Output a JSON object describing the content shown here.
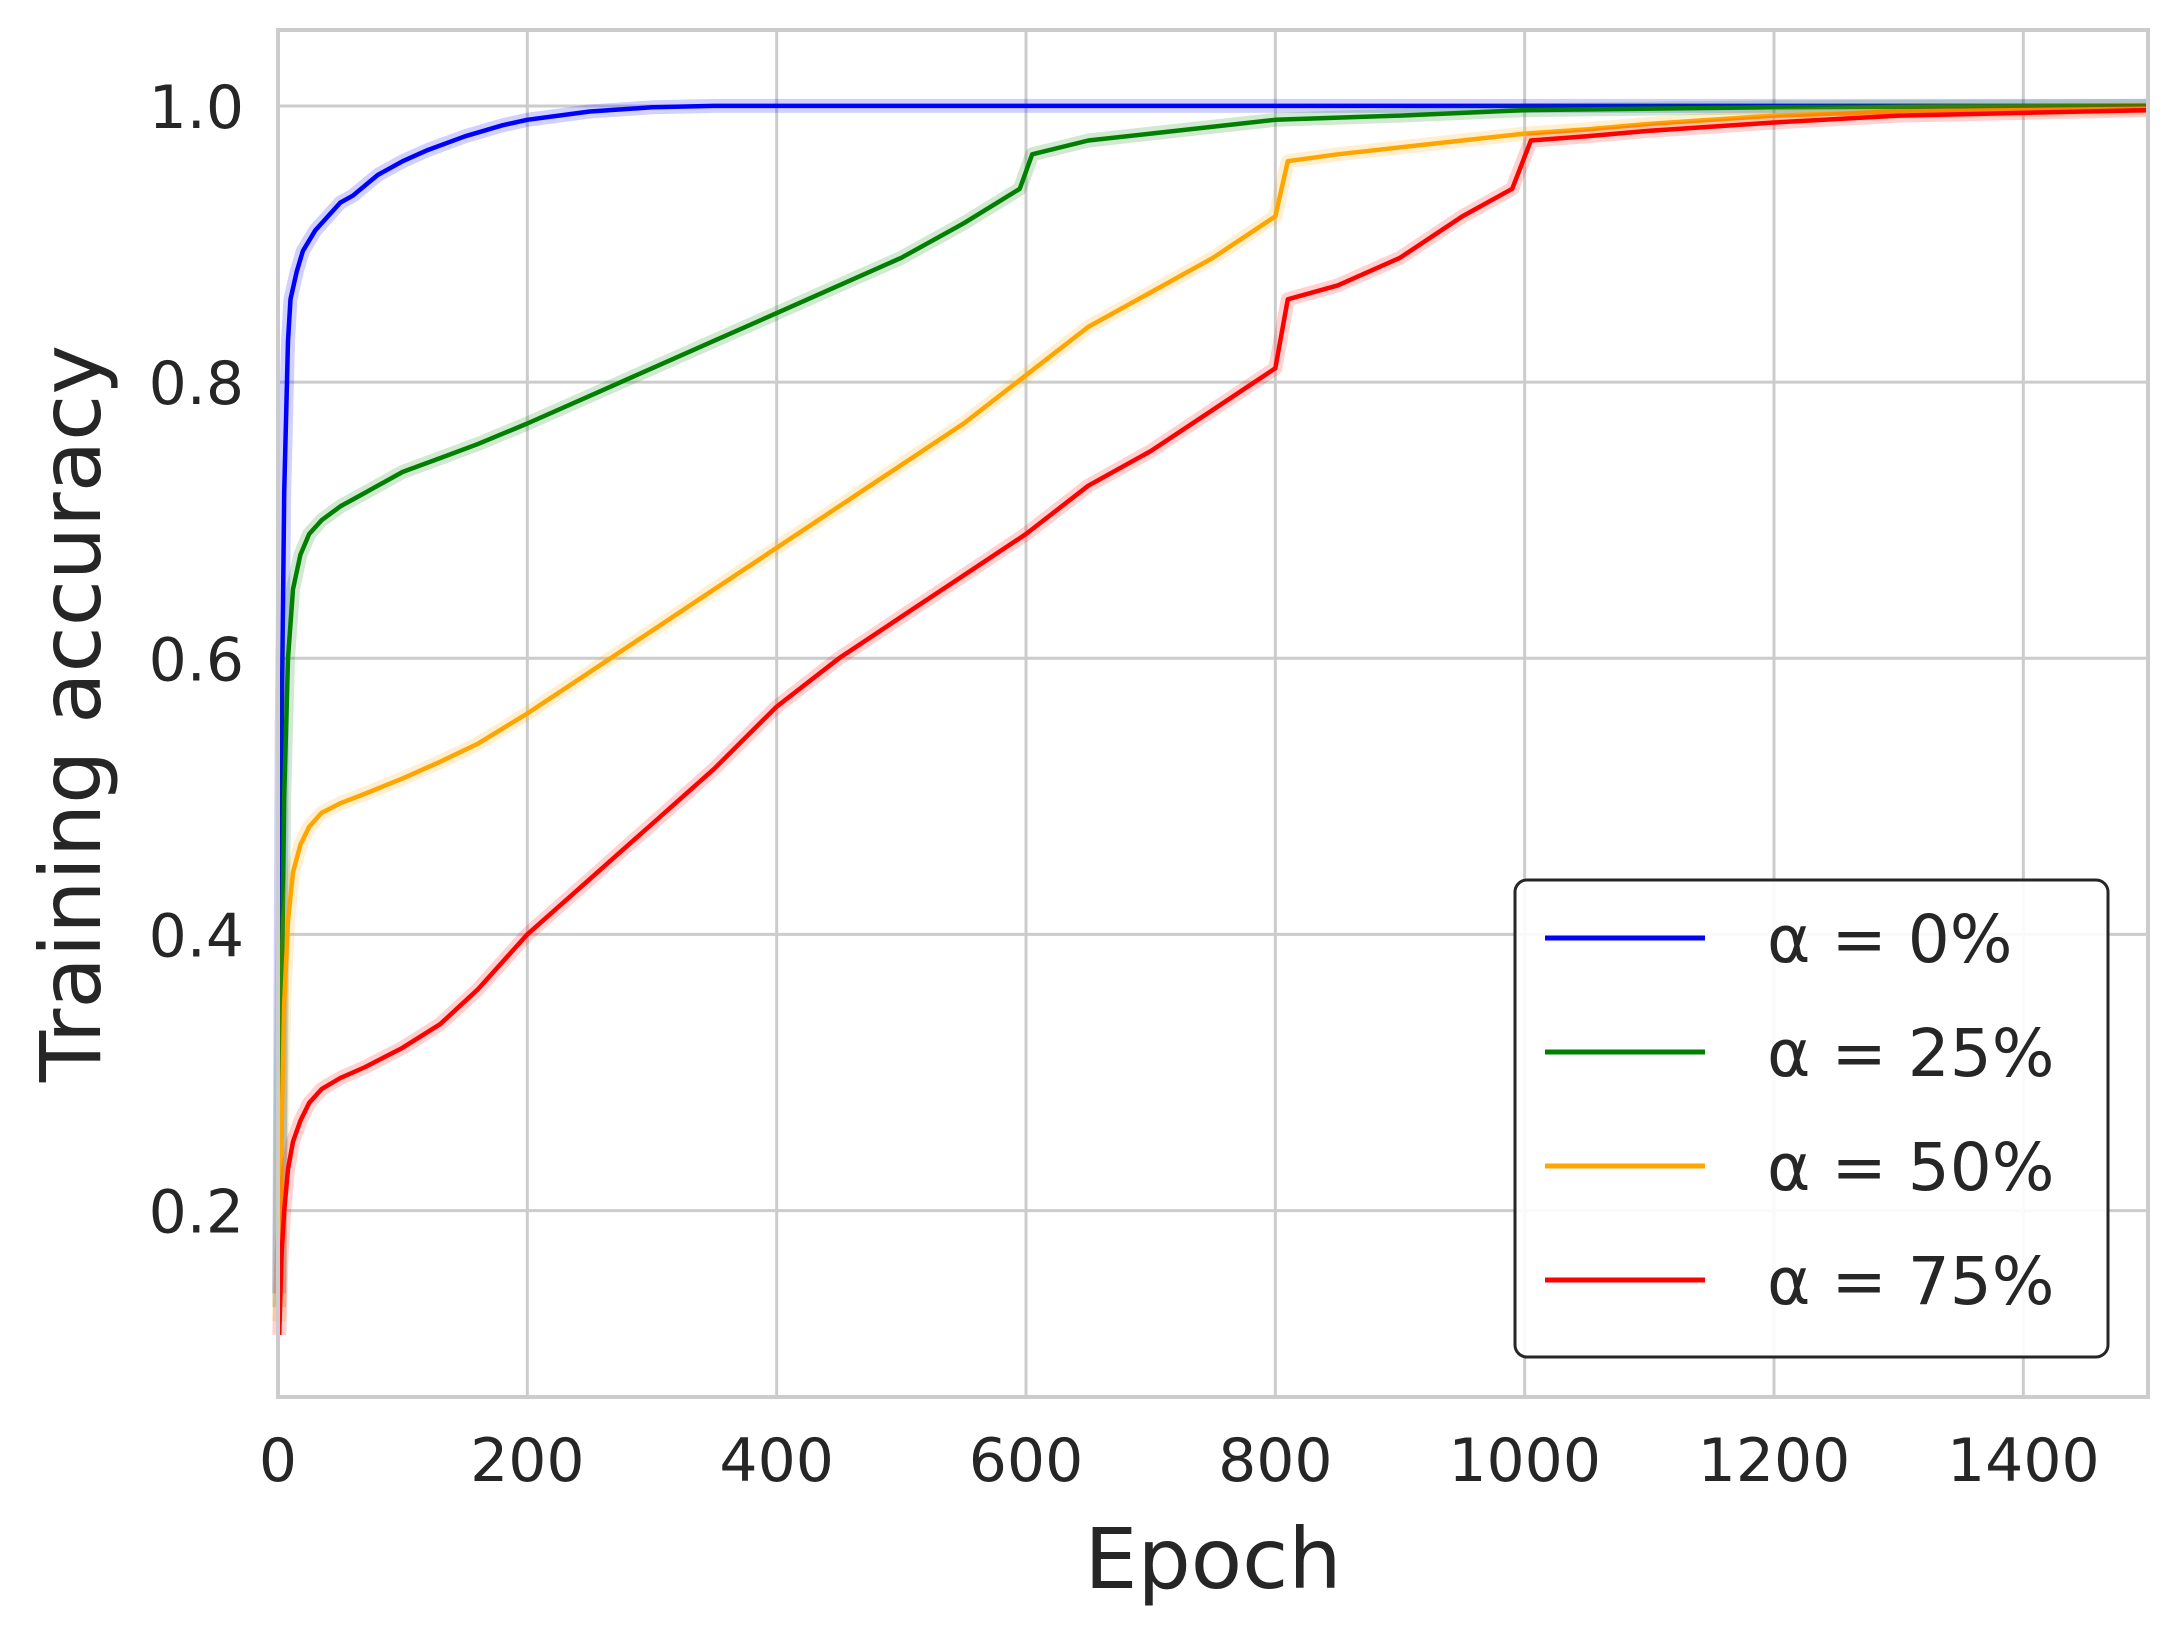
{
  "chart_data": {
    "type": "line",
    "xlabel": "Epoch",
    "ylabel": "Training accuracy",
    "xlim": [
      0,
      1500
    ],
    "ylim": [
      0.065,
      1.055
    ],
    "xticks": [
      0,
      200,
      400,
      600,
      800,
      1000,
      1200,
      1400
    ],
    "xtick_labels": [
      "0",
      "200",
      "400",
      "600",
      "800",
      "1000",
      "1200",
      "1400"
    ],
    "yticks": [
      0.2,
      0.4,
      0.6,
      0.8,
      1.0
    ],
    "ytick_labels": [
      "0.2",
      "0.4",
      "0.6",
      "0.8",
      "1.0"
    ],
    "grid": true,
    "legend_position": "lower-right",
    "series": [
      {
        "name": "α = 0%",
        "color": "#0000ff",
        "x": [
          1,
          3,
          5,
          8,
          10,
          15,
          20,
          30,
          40,
          50,
          60,
          80,
          100,
          120,
          150,
          180,
          200,
          250,
          300,
          350,
          400,
          500,
          700,
          1000,
          1200,
          1500
        ],
        "y": [
          0.14,
          0.55,
          0.72,
          0.83,
          0.86,
          0.88,
          0.895,
          0.91,
          0.92,
          0.93,
          0.935,
          0.95,
          0.96,
          0.968,
          0.978,
          0.986,
          0.99,
          0.996,
          0.999,
          1.0,
          1.0,
          1.0,
          1.0,
          1.0,
          1.0,
          1.0
        ]
      },
      {
        "name": "α = 25%",
        "color": "#008000",
        "x": [
          1,
          3,
          5,
          8,
          12,
          18,
          25,
          35,
          50,
          70,
          100,
          130,
          160,
          200,
          250,
          300,
          350,
          400,
          450,
          500,
          550,
          595,
          605,
          650,
          700,
          800,
          900,
          1000,
          1200,
          1500
        ],
        "y": [
          0.13,
          0.35,
          0.5,
          0.6,
          0.65,
          0.675,
          0.69,
          0.7,
          0.71,
          0.72,
          0.735,
          0.745,
          0.755,
          0.77,
          0.79,
          0.81,
          0.83,
          0.85,
          0.87,
          0.89,
          0.915,
          0.94,
          0.965,
          0.975,
          0.98,
          0.99,
          0.993,
          0.997,
          0.999,
          1.0
        ]
      },
      {
        "name": "α = 50%",
        "color": "#ffa500",
        "x": [
          1,
          3,
          5,
          8,
          12,
          18,
          25,
          35,
          50,
          70,
          100,
          130,
          160,
          200,
          250,
          300,
          350,
          400,
          450,
          500,
          550,
          600,
          650,
          700,
          750,
          800,
          810,
          850,
          900,
          950,
          1000,
          1050,
          1100,
          1150,
          1200,
          1300,
          1500
        ],
        "y": [
          0.12,
          0.26,
          0.35,
          0.41,
          0.445,
          0.465,
          0.478,
          0.488,
          0.495,
          0.502,
          0.513,
          0.525,
          0.538,
          0.56,
          0.59,
          0.62,
          0.65,
          0.68,
          0.71,
          0.74,
          0.77,
          0.805,
          0.84,
          0.865,
          0.89,
          0.92,
          0.96,
          0.965,
          0.97,
          0.975,
          0.98,
          0.983,
          0.987,
          0.99,
          0.993,
          0.996,
          0.998
        ]
      },
      {
        "name": "α = 75%",
        "color": "#ff0000",
        "x": [
          1,
          3,
          5,
          8,
          12,
          18,
          25,
          35,
          50,
          70,
          100,
          130,
          160,
          200,
          250,
          300,
          350,
          400,
          450,
          500,
          550,
          600,
          650,
          700,
          750,
          800,
          810,
          850,
          900,
          950,
          990,
          1005,
          1050,
          1100,
          1200,
          1300,
          1500
        ],
        "y": [
          0.11,
          0.17,
          0.2,
          0.23,
          0.25,
          0.265,
          0.278,
          0.288,
          0.296,
          0.304,
          0.318,
          0.335,
          0.36,
          0.4,
          0.44,
          0.48,
          0.52,
          0.565,
          0.6,
          0.63,
          0.66,
          0.69,
          0.725,
          0.75,
          0.78,
          0.81,
          0.86,
          0.87,
          0.89,
          0.92,
          0.94,
          0.975,
          0.978,
          0.982,
          0.988,
          0.993,
          0.997
        ]
      }
    ]
  }
}
